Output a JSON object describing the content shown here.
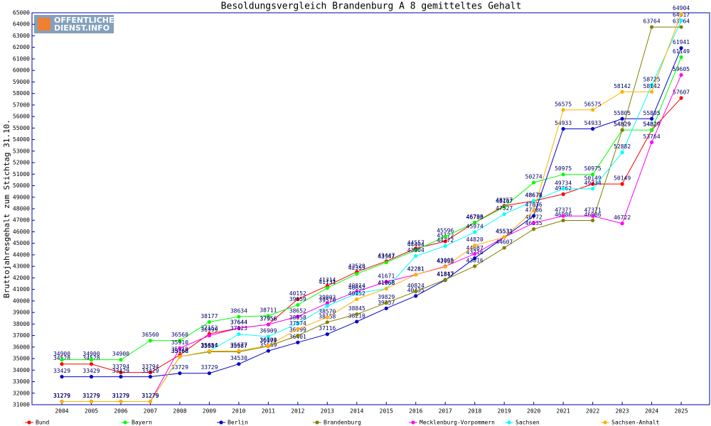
{
  "chart_data": {
    "type": "line",
    "title": "Besoldungsvergleich Brandenburg A 8 gemitteltes Gehalt",
    "y_label": "Bruttojahresgehalt zum Stichtag 31.10.",
    "watermark": [
      "OFFENTLICHER",
      "DIENST.INFO"
    ],
    "categories": [
      "2004",
      "2005",
      "2006",
      "2007",
      "2008",
      "2009",
      "2010",
      "2011",
      "2012",
      "2013",
      "2014",
      "2015",
      "2016",
      "2017",
      "2018",
      "2019",
      "2020",
      "2021",
      "2022",
      "2023",
      "2024",
      "2025"
    ],
    "ylim": [
      31000,
      65000
    ],
    "yticks": [
      31000,
      32000,
      33000,
      34000,
      35000,
      36000,
      37000,
      38000,
      39000,
      40000,
      41000,
      42000,
      43000,
      44000,
      45000,
      46000,
      47000,
      48000,
      49000,
      50000,
      51000,
      52000,
      53000,
      54000,
      55000,
      56000,
      57000,
      58000,
      59000,
      60000,
      61000,
      62000,
      63000,
      64000,
      65000
    ],
    "grid": false,
    "legend": "bottom",
    "series": [
      {
        "name": "Bund",
        "color": "#ff0000",
        "values": [
          34528,
          34528,
          33794,
          33794,
          35318,
          37152,
          37644,
          37956,
          40152,
          41314,
          42528,
          43447,
          44557,
          45172,
          46798,
          48257,
          48678,
          49262,
          50149,
          50149,
          54829,
          57607
        ]
      },
      {
        "name": "Bayern",
        "color": "#00ff00",
        "values": [
          34900,
          34900,
          34900,
          36560,
          36560,
          38177,
          38634,
          38711,
          39659,
          41131,
          42353,
          43347,
          44404,
          45596,
          46780,
          48167,
          50274,
          50975,
          50975,
          54829,
          54829,
          61149
        ]
      },
      {
        "name": "Berlin",
        "color": "#0000cc",
        "values": [
          33429,
          33429,
          33429,
          33429,
          33729,
          33729,
          34530,
          35669,
          36401,
          37116,
          38210,
          39357,
          40435,
          41812,
          43716,
          45531,
          47386,
          54933,
          54933,
          55805,
          55805,
          61941
        ]
      },
      {
        "name": "Brandenburg",
        "color": "#808000",
        "values": [
          31279,
          31279,
          31279,
          31279,
          35168,
          35587,
          35587,
          36074,
          36999,
          38158,
          38845,
          39829,
          40824,
          41847,
          43016,
          44607,
          46235,
          46986,
          46986,
          54829,
          63764,
          63764
        ]
      },
      {
        "name": "Mecklenburg-Vorpommern",
        "color": "#ff00ff",
        "values": [
          31279,
          31279,
          31279,
          31279,
          35910,
          36999,
          37644,
          37956,
          38652,
          39803,
          40814,
          41671,
          42281,
          43005,
          44087,
          45531,
          46772,
          47371,
          47371,
          46722,
          53764,
          59605
        ]
      },
      {
        "name": "Sachsen",
        "color": "#00ffff",
        "values": [
          31279,
          31279,
          31279,
          31279,
          35168,
          35654,
          37123,
          36909,
          38058,
          39570,
          40652,
          41068,
          43904,
          44772,
          45974,
          47527,
          48678,
          49734,
          49734,
          52882,
          58725,
          64317
        ]
      },
      {
        "name": "Sachsen-Anhalt",
        "color": "#ffb000",
        "values": [
          31279,
          31279,
          31279,
          31279,
          35168,
          35654,
          35677,
          36109,
          37574,
          38570,
          40152,
          41068,
          42281,
          42958,
          44820,
          45531,
          47836,
          56575,
          56575,
          58142,
          58142,
          64904
        ]
      }
    ]
  }
}
